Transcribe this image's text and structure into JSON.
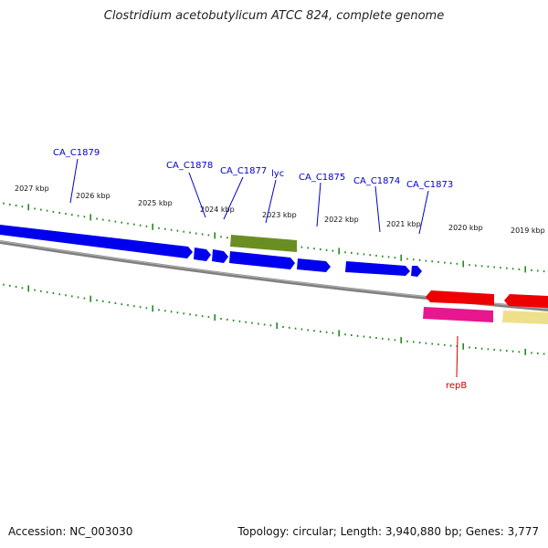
{
  "title": "Clostridium acetobutylicum ATCC 824, complete genome",
  "footer": {
    "accession": "Accession: NC_003030",
    "summary": "Topology: circular; Length: 3,940,880 bp; Genes: 3,777"
  },
  "colors": {
    "forward_gene": "#0000ee",
    "reverse_gene": "#ee0000",
    "label_forward": "#0000cc",
    "label_reverse": "#cc0000",
    "olive_feature": "#6b8e23",
    "pink_feature": "#e8168f",
    "pale_feature": "#eee08a",
    "scale_ticks": "#228b22",
    "backbone": "#808080"
  },
  "scale_labels": [
    "2027 kbp",
    "2026 kbp",
    "2025 kbp",
    "2024 kbp",
    "2023 kbp",
    "2022 kbp",
    "2021 kbp",
    "2020 kbp",
    "2019 kbp"
  ],
  "gene_labels_top": [
    "CA_C1879",
    "CA_C1878",
    "CA_C1877",
    "lyc",
    "CA_C1875",
    "CA_C1874",
    "CA_C1873"
  ],
  "gene_labels_bottom": [
    "repB"
  ]
}
